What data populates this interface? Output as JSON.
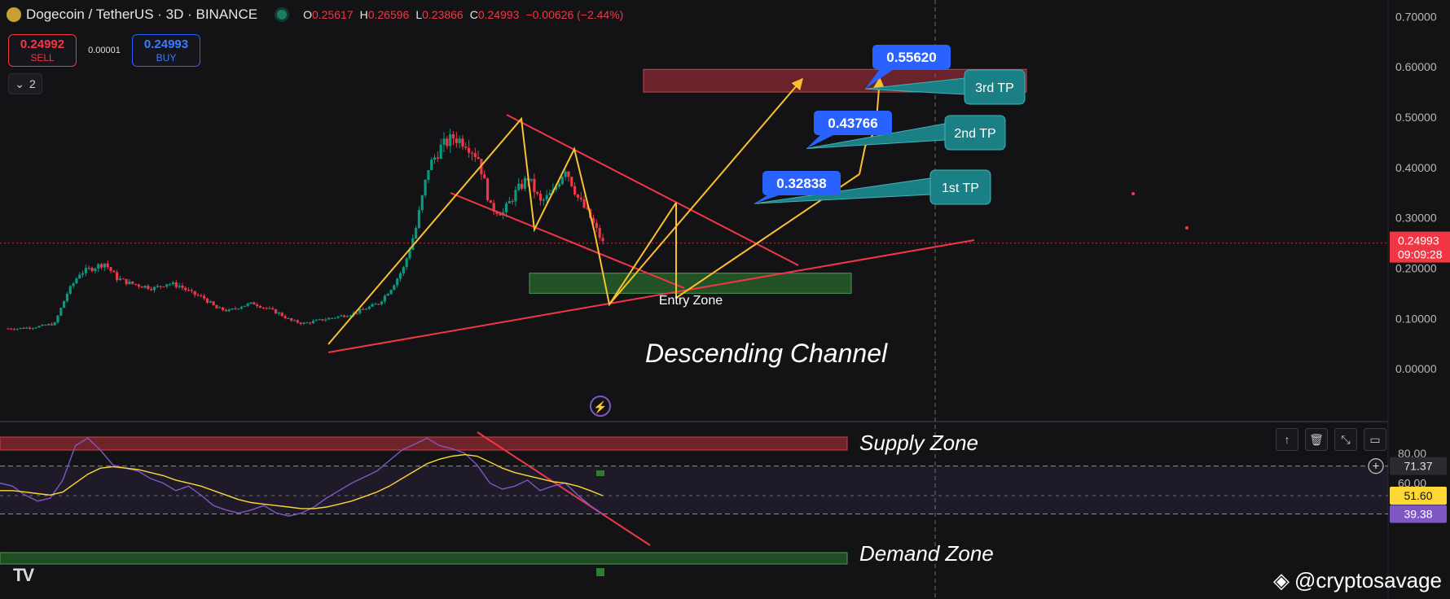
{
  "header": {
    "title": "Dogecoin / TetherUS · 3D · BINANCE",
    "ohlc": [
      {
        "k": "O",
        "v": "0.25617"
      },
      {
        "k": "H",
        "v": "0.26596"
      },
      {
        "k": "L",
        "v": "0.23866"
      },
      {
        "k": "C",
        "v": "0.24993"
      },
      {
        "k": "",
        "v": "−0.00626 (−2.44%)"
      }
    ]
  },
  "trade": {
    "sell_price": "0.24992",
    "sell_label": "SELL",
    "spread": "0.00001",
    "buy_price": "0.24993",
    "buy_label": "BUY"
  },
  "layers_label": "2",
  "price_axis": [
    "0.70000",
    "0.60000",
    "0.50000",
    "0.40000",
    "0.30000",
    "0.20000",
    "0.10000",
    "0.00000"
  ],
  "price_badge": {
    "price": "0.24993",
    "countdown": "09:09:28"
  },
  "rsi_axis": [
    "80.00",
    "60.00"
  ],
  "rsi_badges": [
    "71.37",
    "51.60",
    "39.38"
  ],
  "annotations": {
    "tp1_label": "1st TP",
    "tp2_label": "2nd TP",
    "tp3_label": "3rd TP",
    "tp1_price": "0.32838",
    "tp2_price": "0.43766",
    "tp3_price": "0.55620",
    "entry_zone": "Entry Zone",
    "descending_channel": "Descending Channel",
    "supply_zone": "Supply Zone",
    "demand_zone": "Demand Zone"
  },
  "colors": {
    "bull": "#089981",
    "bear": "#f23645",
    "pattern": "#fbc02d",
    "channel": "#f23645",
    "label_blue": "#2962ff",
    "tp_teal": "#1b7f86",
    "rsi": "#7e57c2",
    "rsi_ma": "#fdd835"
  },
  "credit": "@cryptosavage",
  "chart_data": [
    {
      "type": "candlestick",
      "title": "Dogecoin / TetherUS · 3D · BINANCE",
      "ylim": [
        -0.05,
        0.72
      ],
      "y_ticks": [
        0.0,
        0.1,
        0.2,
        0.3,
        0.4,
        0.5,
        0.6,
        0.7
      ],
      "current_price": 0.24993,
      "grid": false,
      "approx_close_path": [
        0.08,
        0.08,
        0.082,
        0.085,
        0.09,
        0.15,
        0.19,
        0.2,
        0.21,
        0.18,
        0.17,
        0.165,
        0.16,
        0.17,
        0.165,
        0.15,
        0.14,
        0.12,
        0.115,
        0.125,
        0.13,
        0.12,
        0.11,
        0.095,
        0.09,
        0.095,
        0.1,
        0.105,
        0.11,
        0.12,
        0.13,
        0.16,
        0.2,
        0.28,
        0.4,
        0.44,
        0.46,
        0.45,
        0.42,
        0.32,
        0.31,
        0.35,
        0.38,
        0.33,
        0.35,
        0.4,
        0.34,
        0.3,
        0.25
      ],
      "overlays": {
        "take_profits": [
          0.32838,
          0.43766,
          0.5562
        ],
        "target_zone": [
          0.55,
          0.595
        ],
        "entry_zone": [
          0.15,
          0.19
        ]
      }
    },
    {
      "type": "line",
      "title": "RSI",
      "ylim": [
        0,
        100
      ],
      "y_ticks": [
        80,
        60
      ],
      "series": [
        {
          "values": [
            60,
            58,
            52,
            48,
            50,
            62,
            85,
            90,
            82,
            72,
            70,
            68,
            63,
            60,
            55,
            58,
            52,
            45,
            42,
            40,
            42,
            45,
            40,
            38,
            40,
            44,
            50,
            55,
            60,
            64,
            68,
            75,
            82,
            86,
            90,
            85,
            83,
            80,
            72,
            60,
            56,
            58,
            62,
            55,
            58,
            60,
            52,
            45,
            39.38
          ]
        },
        {
          "values": [
            55,
            55,
            54,
            53,
            52,
            54,
            60,
            66,
            70,
            71,
            70,
            69,
            67,
            65,
            62,
            60,
            58,
            55,
            52,
            49,
            47,
            46,
            45,
            44,
            43,
            43,
            44,
            46,
            48,
            51,
            54,
            58,
            63,
            68,
            73,
            76,
            78,
            79,
            78,
            74,
            70,
            67,
            65,
            63,
            61,
            60,
            58,
            55,
            51.6
          ]
        }
      ],
      "levels": [
        71.37,
        51.6,
        39.38
      ]
    }
  ]
}
